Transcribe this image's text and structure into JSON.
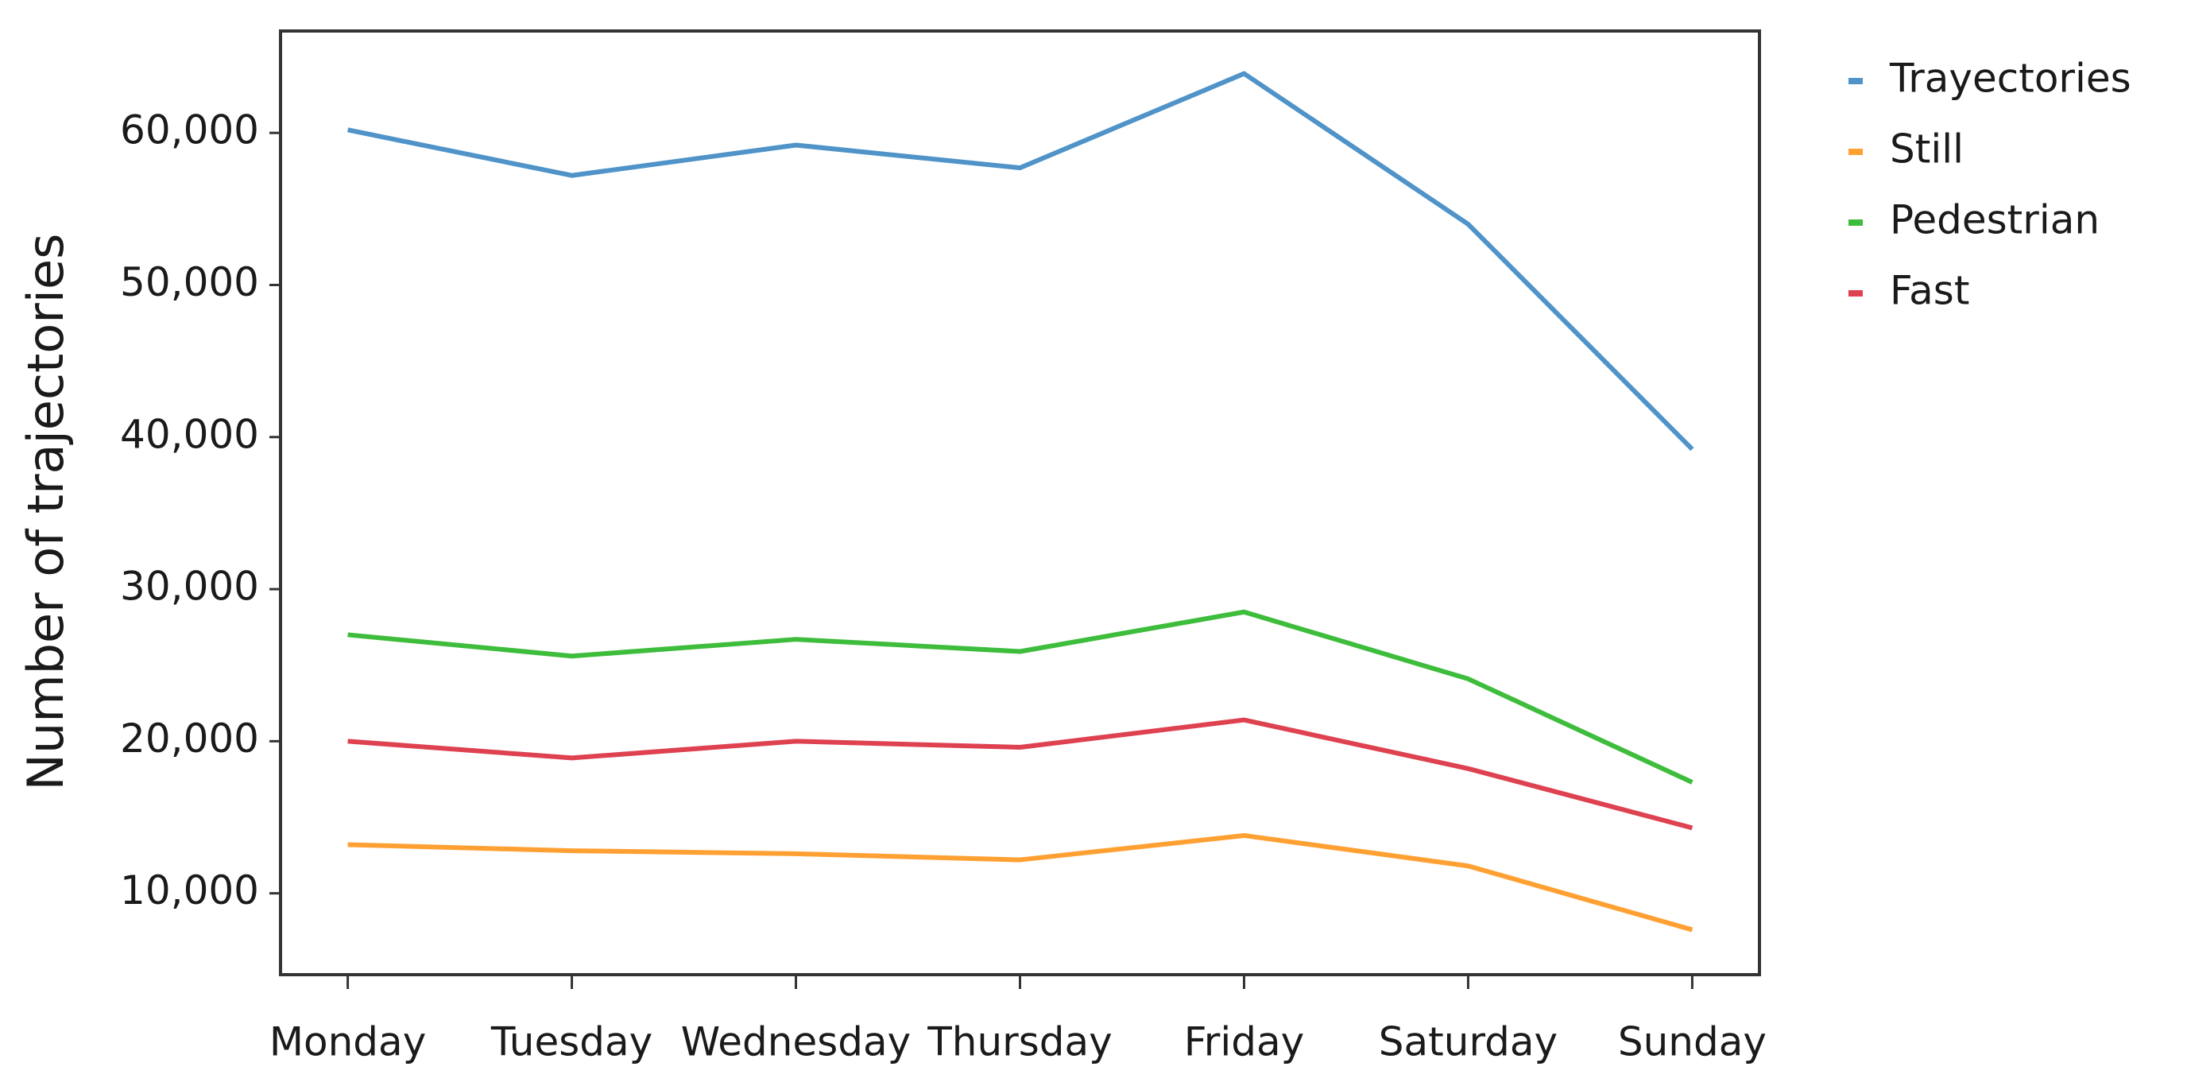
{
  "chart_data": {
    "type": "line",
    "y_label": "Number of trajectories",
    "categories": [
      "Monday",
      "Tuesday",
      "Wednesday",
      "Thursday",
      "Friday",
      "Saturday",
      "Sunday"
    ],
    "series": [
      {
        "name": "Trayectories",
        "color": "#4f93c8",
        "values": [
          60200,
          57200,
          59200,
          57700,
          63900,
          54000,
          39200
        ]
      },
      {
        "name": "Still",
        "color": "#ffa033",
        "values": [
          13200,
          12800,
          12600,
          12200,
          13800,
          11800,
          7600
        ]
      },
      {
        "name": "Pedestrian",
        "color": "#3ebd3c",
        "values": [
          27000,
          25600,
          26700,
          25900,
          28500,
          24100,
          17300
        ]
      },
      {
        "name": "Fast",
        "color": "#de4250",
        "values": [
          20000,
          18900,
          20000,
          19600,
          21400,
          18200,
          14300
        ]
      }
    ],
    "ylim": [
      4650,
      66700
    ],
    "yticks": [
      {
        "value": 10000,
        "label": "10,000"
      },
      {
        "value": 20000,
        "label": "20,000"
      },
      {
        "value": 30000,
        "label": "30,000"
      },
      {
        "value": 40000,
        "label": "40,000"
      },
      {
        "value": 50000,
        "label": "50,000"
      },
      {
        "value": 60000,
        "label": "60,000"
      }
    ],
    "grid": false,
    "legend": "outside-right"
  }
}
